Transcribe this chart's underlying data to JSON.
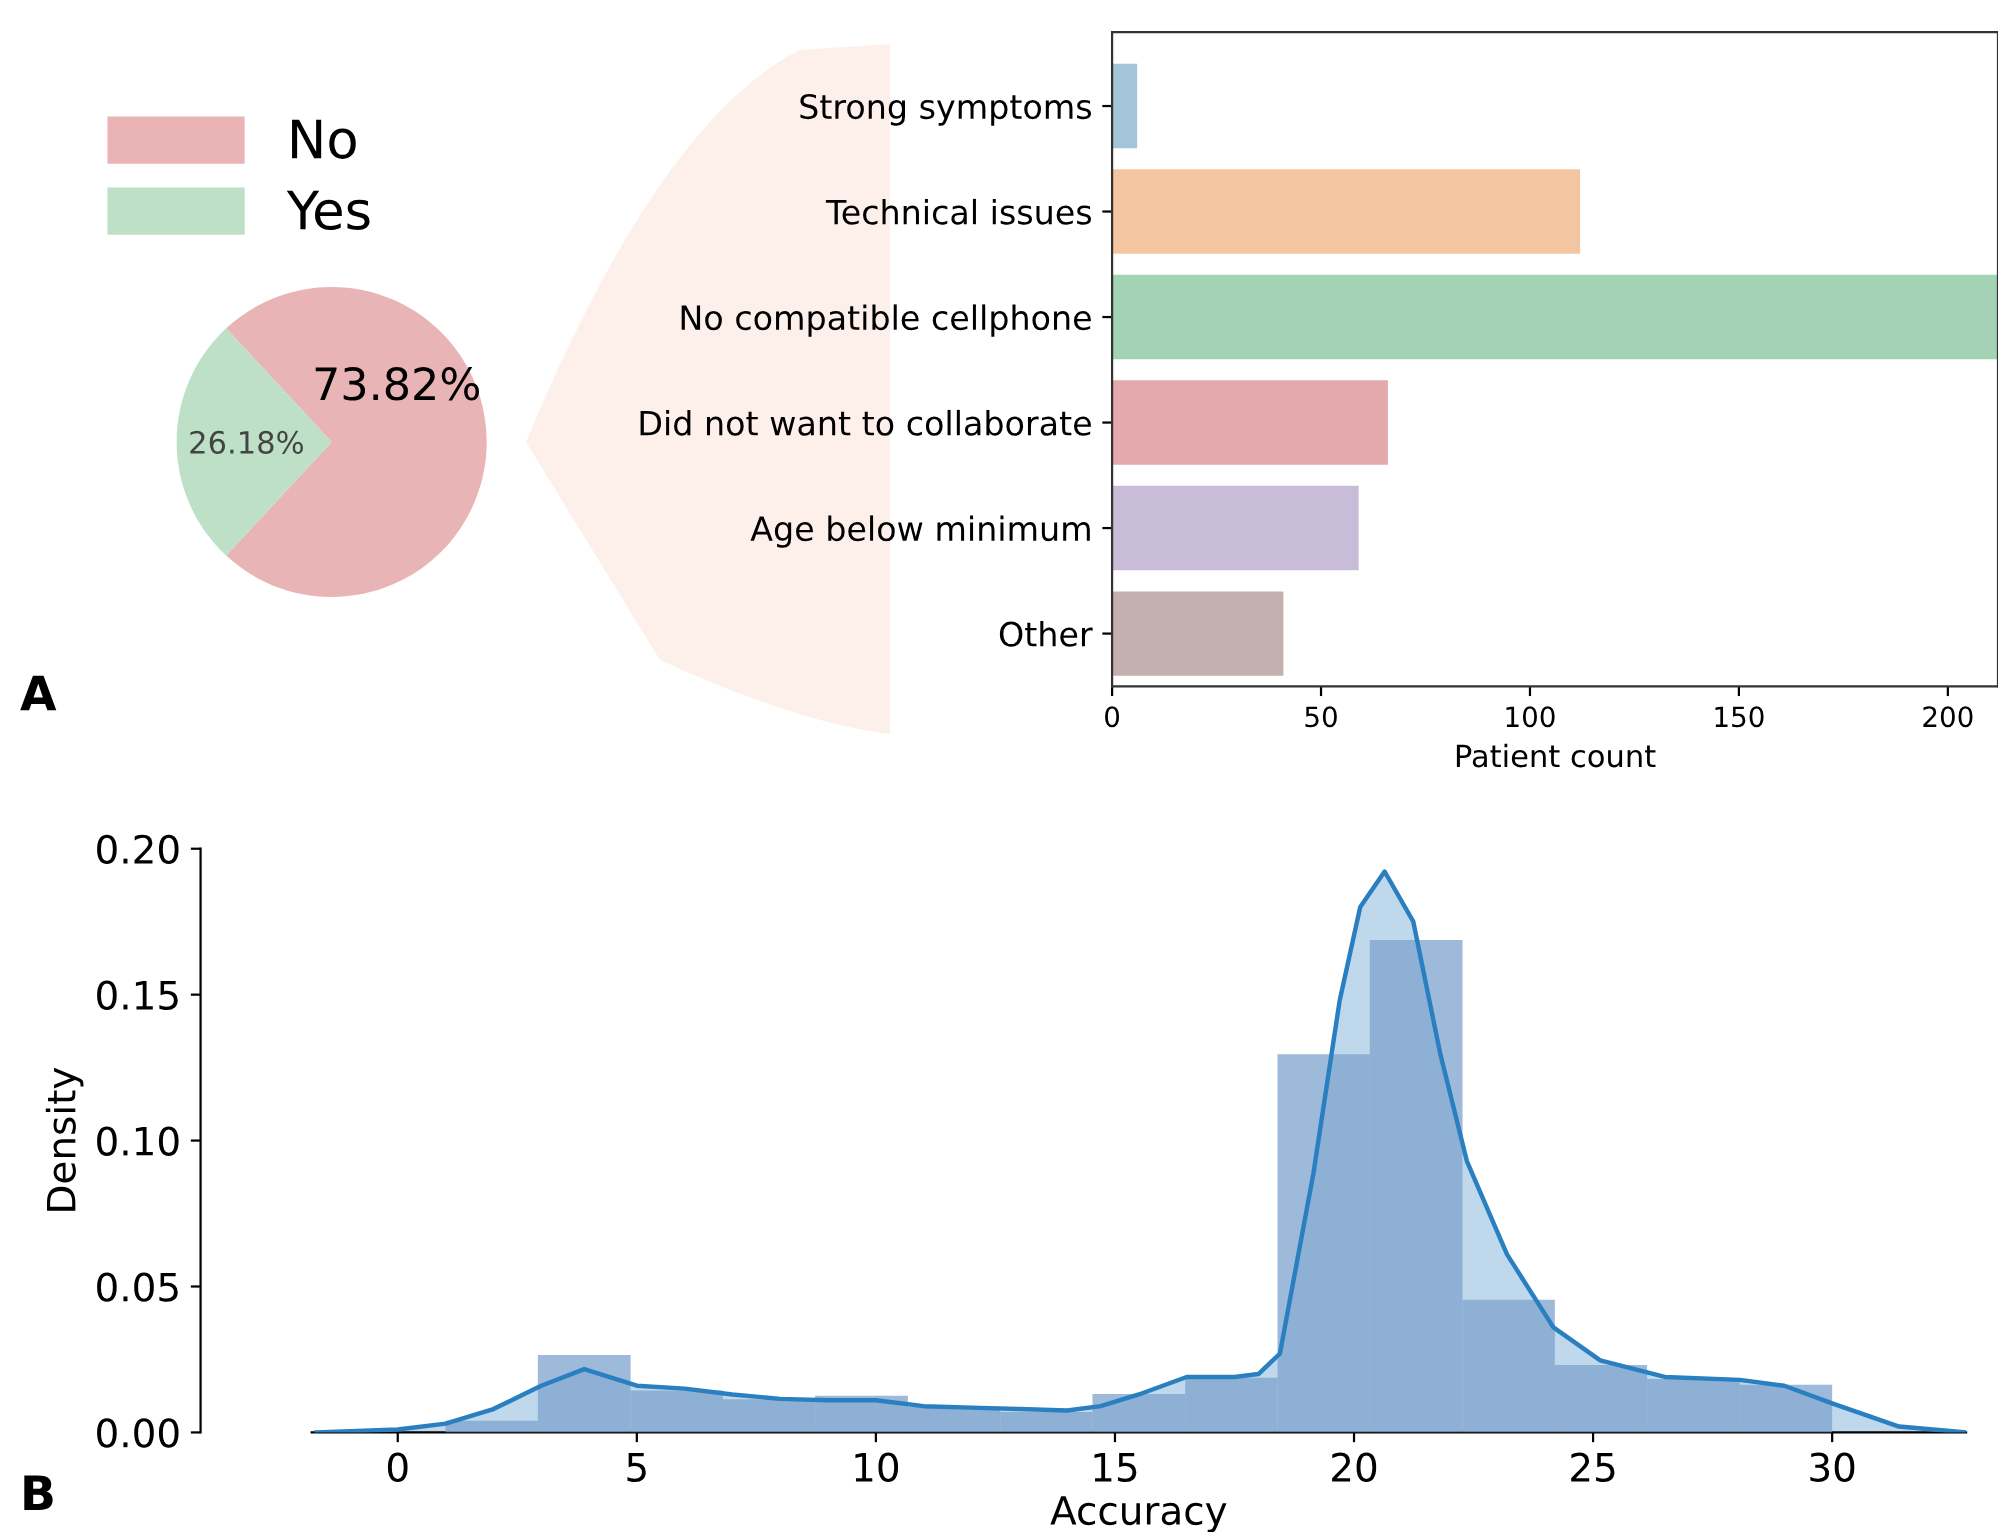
{
  "chart_data": [
    {
      "type": "pie",
      "categories": [
        "No",
        "Yes"
      ],
      "values": [
        73.82,
        26.18
      ],
      "colors": [
        "#e8b4b5",
        "#bde0c6"
      ],
      "value_labels": [
        "73.82%",
        "26.18%"
      ],
      "legend": "top left",
      "annotations": [
        "A"
      ]
    },
    {
      "type": "bar",
      "orientation": "horizontal",
      "categories": [
        "Strong symptoms",
        "Technical issues",
        "No compatible cellphone",
        "Did not want to collaborate",
        "Age below minimum",
        "Other"
      ],
      "values": [
        6,
        112,
        212,
        66,
        59,
        41
      ],
      "colors": [
        "#a3c4d9",
        "#f3c6a1",
        "#a3d2b5",
        "#e4a9ac",
        "#c9bcd9",
        "#c4b0ae"
      ],
      "xlabel": "Patient count",
      "xlim": [
        0,
        212
      ],
      "xticks": [
        0,
        50,
        100,
        150,
        200
      ]
    },
    {
      "type": "histogram",
      "xlabel": "Accuracy",
      "ylabel": "Density",
      "xlim": [
        -1.8,
        32.8
      ],
      "ylim": [
        0,
        0.2
      ],
      "xticks": [
        0,
        5,
        10,
        15,
        20,
        25,
        30
      ],
      "yticks": [
        {
          "value": 0,
          "label": "0.00"
        },
        {
          "value": 0.05,
          "label": "0.05"
        },
        {
          "value": 0.1,
          "label": "0.10"
        },
        {
          "value": 0.15,
          "label": "0.15"
        },
        {
          "value": 0.2,
          "label": "0.20"
        }
      ],
      "annotations": [
        "B"
      ],
      "series": [
        {
          "type": "histogram",
          "color": "#7ea3cd",
          "bins": [
            1,
            2.93,
            4.87,
            6.8,
            8.73,
            10.67,
            12.6,
            14.53,
            16.47,
            18.4,
            20.33,
            22.27,
            24.2,
            26.13,
            28.07,
            30
          ],
          "values": [
            0.004,
            0.0265,
            0.0144,
            0.0114,
            0.0126,
            0.0087,
            0.007,
            0.0132,
            0.0187,
            0.1296,
            0.1687,
            0.0455,
            0.0231,
            0.0183,
            0.0163
          ]
        },
        {
          "type": "area",
          "color": "#2a7fc0",
          "x": [
            -1.7,
            0,
            1,
            2,
            3,
            3.9,
            5,
            6,
            7,
            8,
            9,
            10,
            11,
            12,
            13,
            14,
            14.7,
            15.5,
            16.5,
            17.5,
            18.0,
            18.45,
            19.15,
            19.7,
            20.13,
            20.64,
            21.24,
            21.8,
            22.36,
            23.2,
            24.17,
            25.15,
            26.5,
            28.07,
            29,
            30.03,
            31.4,
            32.8
          ],
          "values": [
            0,
            0.001,
            0.003,
            0.008,
            0.016,
            0.0217,
            0.016,
            0.015,
            0.013,
            0.0115,
            0.011,
            0.011,
            0.009,
            0.0085,
            0.008,
            0.0075,
            0.009,
            0.013,
            0.019,
            0.019,
            0.02,
            0.027,
            0.0887,
            0.148,
            0.18,
            0.1922,
            0.175,
            0.13,
            0.093,
            0.061,
            0.036,
            0.0247,
            0.019,
            0.018,
            0.016,
            0.0098,
            0.002,
            0
          ]
        }
      ]
    }
  ]
}
